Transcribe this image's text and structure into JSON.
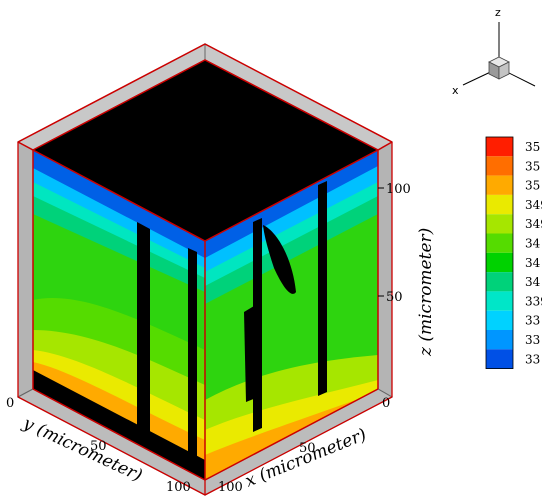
{
  "axes": {
    "x_label": "x (micrometer)",
    "y_label": "y (micrometer)",
    "z_label": "z (micrometer)",
    "x_ticks": [
      "0",
      "50",
      "100"
    ],
    "y_ticks": [
      "0",
      "50",
      "100"
    ],
    "z_ticks": [
      "50",
      "100"
    ]
  },
  "triad": {
    "x": "x",
    "z": "z"
  },
  "legend": {
    "labels": [
      "35",
      "35",
      "35",
      "349",
      "349",
      "34",
      "34",
      "34",
      "339",
      "33",
      "33",
      "33"
    ],
    "colors": [
      "#ff1e00",
      "#ff6e00",
      "#ffaa00",
      "#eaea00",
      "#a6e600",
      "#55dc00",
      "#00d200",
      "#00d27a",
      "#00e6c8",
      "#00d2ff",
      "#0096ff",
      "#0050e6"
    ]
  },
  "colors": {
    "top_face": "#000000",
    "frame": "#cc0000",
    "floor": "#bcbcbc",
    "field_green": "#2ed40f"
  }
}
